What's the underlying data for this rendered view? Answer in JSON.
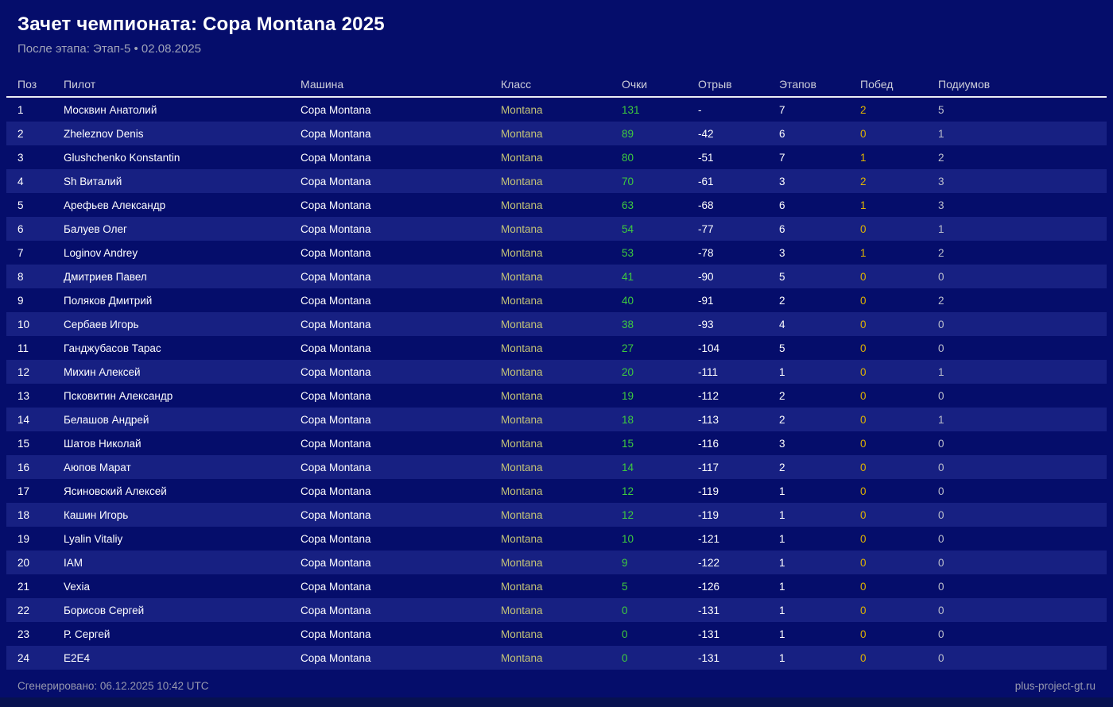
{
  "header": {
    "title": "Зачет чемпионата: Copa Montana 2025",
    "subtitle": "После этапа: Этап-5 • 02.08.2025"
  },
  "table": {
    "columns": [
      {
        "key": "pos",
        "label": "Поз"
      },
      {
        "key": "pilot",
        "label": "Пилот"
      },
      {
        "key": "car",
        "label": "Машина"
      },
      {
        "key": "cls",
        "label": "Класс"
      },
      {
        "key": "points",
        "label": "Очки"
      },
      {
        "key": "gap",
        "label": "Отрыв"
      },
      {
        "key": "stages",
        "label": "Этапов"
      },
      {
        "key": "wins",
        "label": "Побед"
      },
      {
        "key": "podiums",
        "label": "Подиумов"
      }
    ],
    "rows": [
      {
        "pos": "1",
        "pilot": "Москвин Анатолий",
        "car": "Copa Montana",
        "cls": "Montana",
        "points": "131",
        "gap": "-",
        "stages": "7",
        "wins": "2",
        "podiums": "5"
      },
      {
        "pos": "2",
        "pilot": "Zheleznov Denis",
        "car": "Copa Montana",
        "cls": "Montana",
        "points": "89",
        "gap": "-42",
        "stages": "6",
        "wins": "0",
        "podiums": "1"
      },
      {
        "pos": "3",
        "pilot": "Glushchenko Konstantin",
        "car": "Copa Montana",
        "cls": "Montana",
        "points": "80",
        "gap": "-51",
        "stages": "7",
        "wins": "1",
        "podiums": "2"
      },
      {
        "pos": "4",
        "pilot": "Sh Виталий",
        "car": "Copa Montana",
        "cls": "Montana",
        "points": "70",
        "gap": "-61",
        "stages": "3",
        "wins": "2",
        "podiums": "3"
      },
      {
        "pos": "5",
        "pilot": "Арефьев Александр",
        "car": "Copa Montana",
        "cls": "Montana",
        "points": "63",
        "gap": "-68",
        "stages": "6",
        "wins": "1",
        "podiums": "3"
      },
      {
        "pos": "6",
        "pilot": "Балуев Олег",
        "car": "Copa Montana",
        "cls": "Montana",
        "points": "54",
        "gap": "-77",
        "stages": "6",
        "wins": "0",
        "podiums": "1"
      },
      {
        "pos": "7",
        "pilot": "Loginov Andrey",
        "car": "Copa Montana",
        "cls": "Montana",
        "points": "53",
        "gap": "-78",
        "stages": "3",
        "wins": "1",
        "podiums": "2"
      },
      {
        "pos": "8",
        "pilot": "Дмитриев Павел",
        "car": "Copa Montana",
        "cls": "Montana",
        "points": "41",
        "gap": "-90",
        "stages": "5",
        "wins": "0",
        "podiums": "0"
      },
      {
        "pos": "9",
        "pilot": "Поляков Дмитрий",
        "car": "Copa Montana",
        "cls": "Montana",
        "points": "40",
        "gap": "-91",
        "stages": "2",
        "wins": "0",
        "podiums": "2"
      },
      {
        "pos": "10",
        "pilot": "Сербаев Игорь",
        "car": "Copa Montana",
        "cls": "Montana",
        "points": "38",
        "gap": "-93",
        "stages": "4",
        "wins": "0",
        "podiums": "0"
      },
      {
        "pos": "11",
        "pilot": "Ганджубасов Тарас",
        "car": "Copa Montana",
        "cls": "Montana",
        "points": "27",
        "gap": "-104",
        "stages": "5",
        "wins": "0",
        "podiums": "0"
      },
      {
        "pos": "12",
        "pilot": "Михин Алексей",
        "car": "Copa Montana",
        "cls": "Montana",
        "points": "20",
        "gap": "-111",
        "stages": "1",
        "wins": "0",
        "podiums": "1"
      },
      {
        "pos": "13",
        "pilot": "Псковитин Александр",
        "car": "Copa Montana",
        "cls": "Montana",
        "points": "19",
        "gap": "-112",
        "stages": "2",
        "wins": "0",
        "podiums": "0"
      },
      {
        "pos": "14",
        "pilot": "Белашов Андрей",
        "car": "Copa Montana",
        "cls": "Montana",
        "points": "18",
        "gap": "-113",
        "stages": "2",
        "wins": "0",
        "podiums": "1"
      },
      {
        "pos": "15",
        "pilot": "Шатов Николай",
        "car": "Copa Montana",
        "cls": "Montana",
        "points": "15",
        "gap": "-116",
        "stages": "3",
        "wins": "0",
        "podiums": "0"
      },
      {
        "pos": "16",
        "pilot": "Аюпов Марат",
        "car": "Copa Montana",
        "cls": "Montana",
        "points": "14",
        "gap": "-117",
        "stages": "2",
        "wins": "0",
        "podiums": "0"
      },
      {
        "pos": "17",
        "pilot": "Ясиновский Алексей",
        "car": "Copa Montana",
        "cls": "Montana",
        "points": "12",
        "gap": "-119",
        "stages": "1",
        "wins": "0",
        "podiums": "0"
      },
      {
        "pos": "18",
        "pilot": "Кашин Игорь",
        "car": "Copa Montana",
        "cls": "Montana",
        "points": "12",
        "gap": "-119",
        "stages": "1",
        "wins": "0",
        "podiums": "0"
      },
      {
        "pos": "19",
        "pilot": "Lyalin Vitaliy",
        "car": "Copa Montana",
        "cls": "Montana",
        "points": "10",
        "gap": "-121",
        "stages": "1",
        "wins": "0",
        "podiums": "0"
      },
      {
        "pos": "20",
        "pilot": "IAM",
        "car": "Copa Montana",
        "cls": "Montana",
        "points": "9",
        "gap": "-122",
        "stages": "1",
        "wins": "0",
        "podiums": "0"
      },
      {
        "pos": "21",
        "pilot": "Vexia",
        "car": "Copa Montana",
        "cls": "Montana",
        "points": "5",
        "gap": "-126",
        "stages": "1",
        "wins": "0",
        "podiums": "0"
      },
      {
        "pos": "22",
        "pilot": "Борисов Сергей",
        "car": "Copa Montana",
        "cls": "Montana",
        "points": "0",
        "gap": "-131",
        "stages": "1",
        "wins": "0",
        "podiums": "0"
      },
      {
        "pos": "23",
        "pilot": "Р. Сергей",
        "car": "Copa Montana",
        "cls": "Montana",
        "points": "0",
        "gap": "-131",
        "stages": "1",
        "wins": "0",
        "podiums": "0"
      },
      {
        "pos": "24",
        "pilot": "E2E4",
        "car": "Copa Montana",
        "cls": "Montana",
        "points": "0",
        "gap": "-131",
        "stages": "1",
        "wins": "0",
        "podiums": "0"
      }
    ]
  },
  "footer": {
    "generated": "Сгенерировано: 06.12.2025 10:42 UTC",
    "site": "plus-project-gt.ru"
  },
  "colors": {
    "background": "#050d6b",
    "row_stripe": "#172082",
    "points_green": "#3ecb3e",
    "wins_gold": "#e0b400",
    "class_khaki": "#c3c377",
    "podiums_silver": "#bcbfcc",
    "header_gray": "#cdced9",
    "muted_gray": "#9698ae"
  }
}
